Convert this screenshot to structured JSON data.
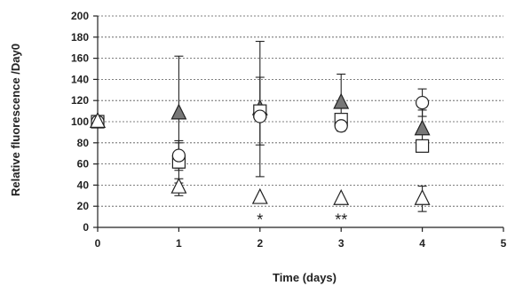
{
  "chart_data": {
    "type": "scatter",
    "xlabel": "Time (days)",
    "ylabel": "Relative fluorescence /Day0",
    "xlim": [
      0,
      5
    ],
    "ylim": [
      0,
      200
    ],
    "xticks": [
      0,
      1,
      2,
      3,
      4,
      5
    ],
    "yticks": [
      0,
      20,
      40,
      60,
      80,
      100,
      120,
      140,
      160,
      180,
      200
    ],
    "grid": true,
    "series": [
      {
        "marker": "triangle",
        "fill": "#777777",
        "points": [
          {
            "x": 0,
            "y": 100,
            "err": 0
          },
          {
            "x": 1,
            "y": 108,
            "err": 54
          },
          {
            "x": 2,
            "y": 112,
            "err": 64
          },
          {
            "x": 3,
            "y": 118,
            "err": 27
          },
          {
            "x": 4,
            "y": 93,
            "err": 18
          }
        ]
      },
      {
        "marker": "square",
        "fill": "#ffffff",
        "points": [
          {
            "x": 0,
            "y": 100,
            "err": 0
          },
          {
            "x": 1,
            "y": 62,
            "err": 20
          },
          {
            "x": 2,
            "y": 110,
            "err": 32
          },
          {
            "x": 3,
            "y": 102,
            "err": 0
          },
          {
            "x": 4,
            "y": 77,
            "err": 0
          }
        ]
      },
      {
        "marker": "circle",
        "fill": "#ffffff",
        "points": [
          {
            "x": 0,
            "y": 100,
            "err": 0
          },
          {
            "x": 1,
            "y": 68,
            "err": 12
          },
          {
            "x": 2,
            "y": 105,
            "err": 0
          },
          {
            "x": 3,
            "y": 96,
            "err": 0
          },
          {
            "x": 4,
            "y": 118,
            "err": 13
          }
        ]
      },
      {
        "marker": "triangle",
        "fill": "#ffffff",
        "points": [
          {
            "x": 0,
            "y": 100,
            "err": 0
          },
          {
            "x": 1,
            "y": 38,
            "err": 8
          },
          {
            "x": 2,
            "y": 28,
            "err": 0
          },
          {
            "x": 3,
            "y": 27,
            "err": 0
          },
          {
            "x": 4,
            "y": 27,
            "err": 12
          }
        ]
      }
    ],
    "annotations": [
      {
        "x": 2,
        "y": 7,
        "text": "*"
      },
      {
        "x": 3,
        "y": 7,
        "text": "**"
      }
    ]
  }
}
